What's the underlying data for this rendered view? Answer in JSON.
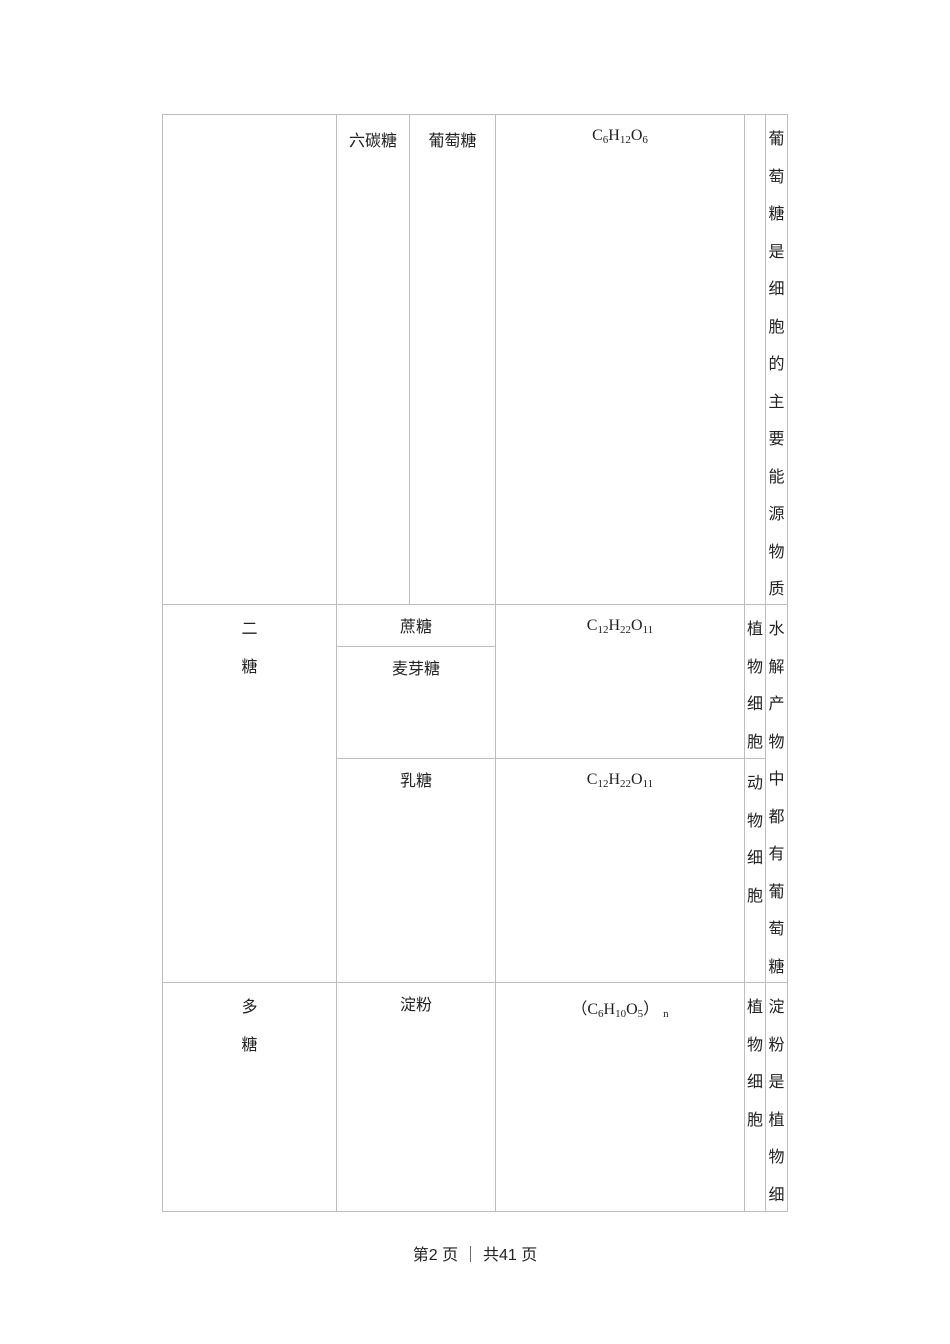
{
  "table": {
    "row_monosaccharide": {
      "subtype": "六碳糖",
      "name": "葡萄糖",
      "formula": [
        "C",
        "6",
        "H",
        "12",
        "O",
        "6"
      ],
      "note": "葡萄糖是细胞的主要能源物质"
    },
    "row_disaccharide": {
      "category": "二糖",
      "sucrose": "蔗糖",
      "maltose": "麦芽糖",
      "formula1": [
        "C",
        "12",
        "H",
        "22",
        "O",
        "11"
      ],
      "location1": "植物细胞",
      "lactose": "乳糖",
      "formula2": [
        "C",
        "12",
        "H",
        "22",
        "O",
        "11"
      ],
      "location2": "动物细胞",
      "note": "水解产物中都有葡萄糖"
    },
    "row_polysaccharide": {
      "category": "多糖",
      "name": "淀粉",
      "formula_prefix": "（",
      "formula": [
        "C",
        "6",
        "H",
        "10",
        "O",
        "5"
      ],
      "formula_suffix": "）",
      "formula_n": "n",
      "location": "植物细胞",
      "note": "淀粉是植物细"
    }
  },
  "footer": {
    "page_text": "第2 页 ｜ 共41 页"
  }
}
